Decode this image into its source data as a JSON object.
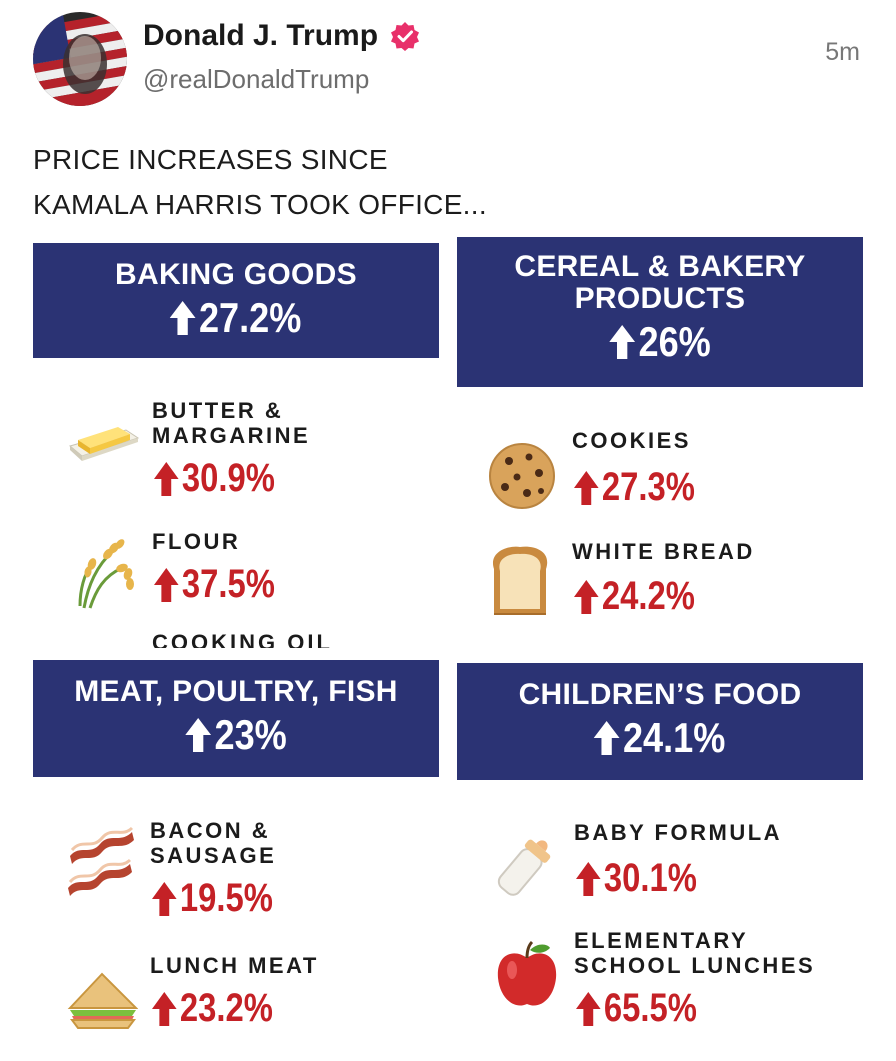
{
  "post": {
    "author_name": "Donald J. Trump",
    "handle": "@realDonaldTrump",
    "time": "5m",
    "text_line1": "PRICE INCREASES SINCE",
    "text_line2": "KAMALA HARRIS TOOK OFFICE..."
  },
  "infographic": {
    "baking": {
      "title": "BAKING GOODS",
      "pct": "27.2%",
      "items": [
        {
          "label_1": "BUTTER &",
          "label_2": "MARGARINE",
          "pct": "30.9%",
          "icon": "butter-icon"
        },
        {
          "label": "FLOUR",
          "pct": "37.5%",
          "icon": "wheat-icon"
        },
        {
          "label": "COOKING OIL",
          "icon": "none"
        }
      ]
    },
    "cereal": {
      "title_1": "CEREAL & BAKERY",
      "title_2": "PRODUCTS",
      "pct": "26%",
      "items": [
        {
          "label": "COOKIES",
          "pct": "27.3%",
          "icon": "cookie-icon"
        },
        {
          "label": "WHITE BREAD",
          "pct": "24.2%",
          "icon": "bread-icon"
        }
      ]
    },
    "meat": {
      "title": "MEAT, POULTRY, FISH",
      "pct": "23%",
      "items": [
        {
          "label_1": "BACON &",
          "label_2": "SAUSAGE",
          "pct": "19.5%",
          "icon": "bacon-icon"
        },
        {
          "label": "LUNCH MEAT",
          "pct": "23.2%",
          "icon": "sandwich-icon"
        }
      ]
    },
    "children": {
      "title": "CHILDREN’S FOOD",
      "pct": "24.1%",
      "items": [
        {
          "label": "BABY FORMULA",
          "pct": "30.1%",
          "icon": "baby-bottle-icon"
        },
        {
          "label_1": "ELEMENTARY",
          "label_2": "SCHOOL LUNCHES",
          "pct": "65.5%",
          "icon": "apple-icon"
        }
      ]
    }
  },
  "colors": {
    "navy": "#2b3374",
    "red": "#c42126",
    "badge": "#e8306a"
  }
}
